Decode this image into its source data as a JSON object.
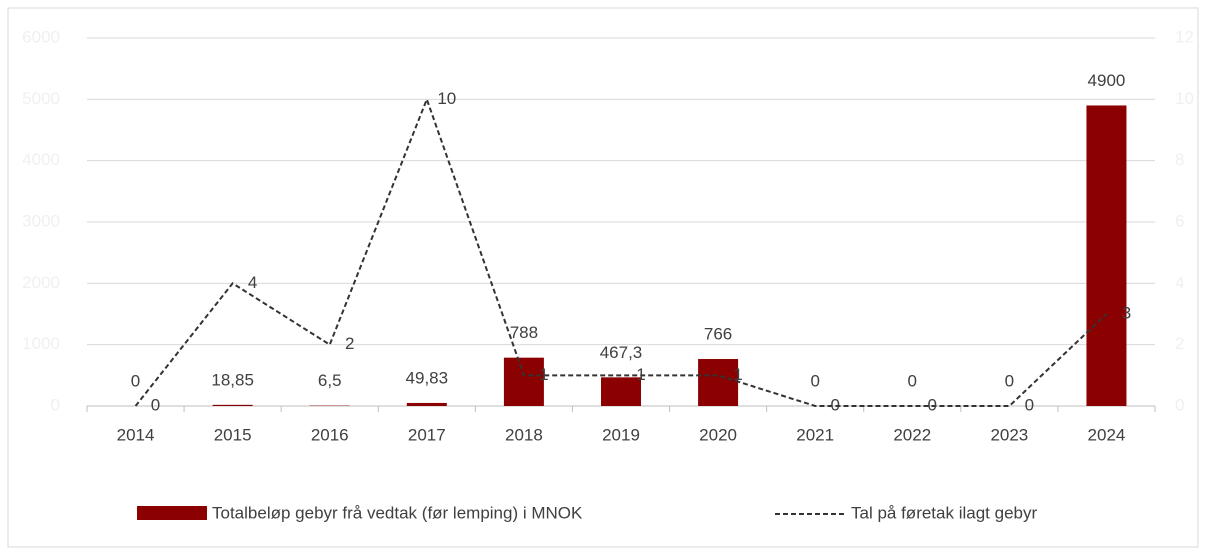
{
  "chart_data": {
    "type": "bar-line",
    "categories": [
      "2014",
      "2015",
      "2016",
      "2017",
      "2018",
      "2019",
      "2020",
      "2021",
      "2022",
      "2023",
      "2024"
    ],
    "series": [
      {
        "name": "Totalbeløp gebyr frå vedtak (før lemping) i MNOK",
        "type": "bar",
        "color": "#8b0000",
        "values": [
          0,
          18.85,
          6.5,
          49.83,
          788,
          467.3,
          766,
          0,
          0,
          0,
          4900
        ],
        "value_labels": [
          "0",
          "18,85",
          "6,5",
          "49,83",
          "788",
          "467,3",
          "766",
          "0",
          "0",
          "0",
          "4900"
        ]
      },
      {
        "name": "Tal på føretak ilagt gebyr",
        "type": "line",
        "axis": "y2",
        "color": "#333333",
        "values": [
          0,
          4,
          2,
          10,
          1,
          1,
          1,
          0,
          0,
          0,
          3
        ]
      }
    ],
    "ylim": [
      0,
      6000
    ],
    "yticks": [
      0,
      1000,
      2000,
      3000,
      4000,
      5000,
      6000
    ],
    "y2lim": [
      0,
      12
    ],
    "y2ticks": [
      0,
      2,
      4,
      6,
      8,
      10,
      12
    ],
    "grid": true,
    "legend": "bottom"
  }
}
